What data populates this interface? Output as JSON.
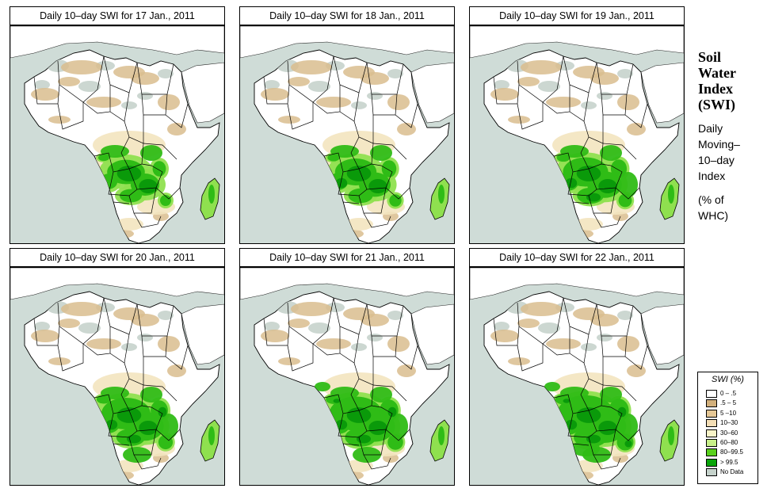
{
  "panels": [
    {
      "title": "Daily 10–day SWI for  17 Jan., 2011",
      "wetness": 0
    },
    {
      "title": "Daily 10–day SWI for  18 Jan., 2011",
      "wetness": 1
    },
    {
      "title": "Daily 10–day SWI for  19 Jan., 2011",
      "wetness": 2
    },
    {
      "title": "Daily 10–day SWI for  20 Jan., 2011",
      "wetness": 3
    },
    {
      "title": "Daily 10–day SWI for  21 Jan., 2011",
      "wetness": 4
    },
    {
      "title": "Daily 10–day SWI for  22 Jan., 2011",
      "wetness": 5
    }
  ],
  "side": {
    "title_lines": [
      "Soil",
      "Water",
      "Index",
      "(SWI)"
    ],
    "subtitle_lines": [
      "Daily",
      "Moving–",
      "10–day",
      "Index"
    ],
    "unit_lines": [
      "(% of",
      " WHC)"
    ]
  },
  "legend": {
    "title": "SWI (%)",
    "items": [
      {
        "label": "0 – .5",
        "color": "#ffffff"
      },
      {
        "label": ".5 – 5",
        "color": "#d2b07c"
      },
      {
        "label": "5 –10",
        "color": "#e6c896"
      },
      {
        "label": "10–30",
        "color": "#f3deb6"
      },
      {
        "label": "30–60",
        "color": "#f8f4c8"
      },
      {
        "label": "60–80",
        "color": "#c8f08a"
      },
      {
        "label": "80–99.5",
        "color": "#5ad11e"
      },
      {
        "label": "> 99.5",
        "color": "#0aa50a"
      },
      {
        "label": "No Data",
        "color": "#c6d3cc"
      }
    ]
  },
  "colors": {
    "ocean": "#cfdcd7",
    "land": "#ffffff",
    "desert": "#c6d3cc",
    "dry": "#d9bd8e",
    "light_green": "#8fe04f",
    "green": "#2fbc16",
    "dark_green": "#0a9a0a"
  }
}
